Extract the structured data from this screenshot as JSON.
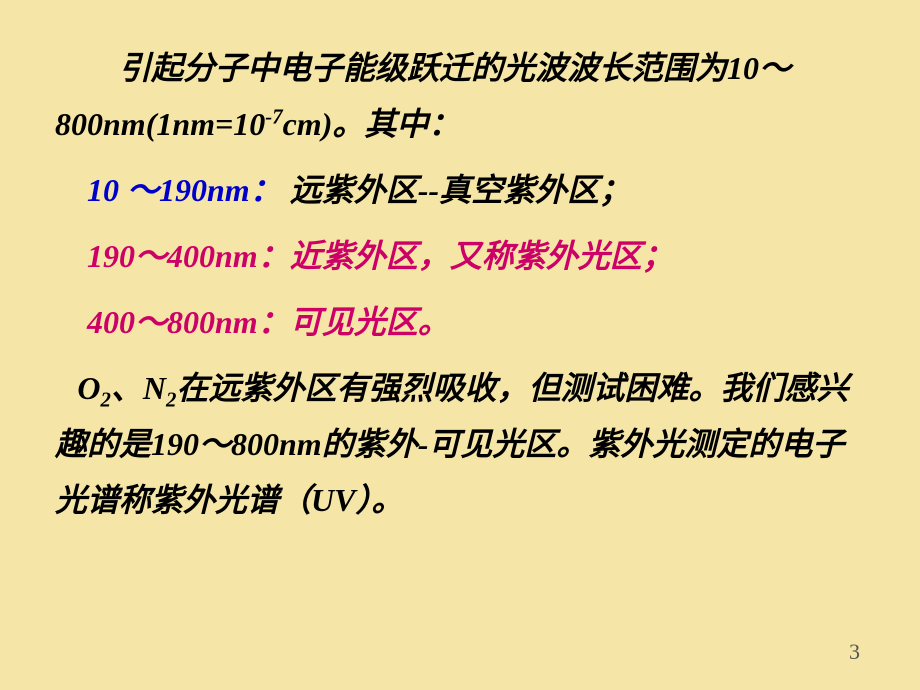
{
  "slide": {
    "background_color": "#f5e6a8",
    "text_color_default": "#000000",
    "text_color_blue": "#0000cc",
    "text_color_magenta": "#cc0066",
    "font_family": "SimSun",
    "font_size_body": 32,
    "font_style": "italic",
    "font_weight": "bold",
    "para1": {
      "text_before_sup": "引起分子中电子能级跃迁的光波波长范围为10～800nm(1nm=10",
      "sup_text": "-7",
      "text_after_sup": "cm)。其中："
    },
    "ranges": {
      "range1_label": "10 ～190nm：",
      "range1_desc": " 远紫外区--真空紫外区；",
      "range2_label": "190～400nm：",
      "range2_desc": "近紫外区，又称紫外光区；",
      "range3_label": "400～800nm：",
      "range3_desc": "可见光区。"
    },
    "para3": {
      "o_letter": "O",
      "o_sub": "2",
      "separator": "、",
      "n_letter": "N",
      "n_sub": "2",
      "rest": "在远紫外区有强烈吸收，但测试困难。我们感兴趣的是190～800nm的紫外-可见光区。紫外光测定的电子光谱称紫外光谱（UV）。"
    },
    "page_number": "3"
  }
}
